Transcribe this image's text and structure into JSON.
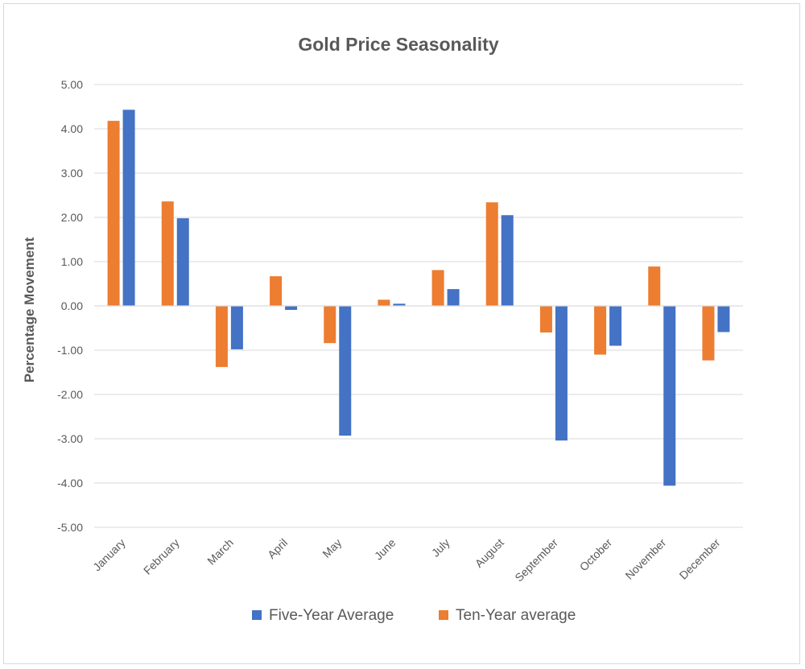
{
  "chart_data": {
    "type": "bar",
    "title": "Gold Price Seasonality",
    "ylabel": "Percentage Movement",
    "xlabel": "",
    "ylim": [
      -5,
      5
    ],
    "yticks": [
      "5.00",
      "4.00",
      "3.00",
      "2.00",
      "1.00",
      "0.00",
      "-1.00",
      "-2.00",
      "-3.00",
      "-4.00",
      "-5.00"
    ],
    "categories": [
      "January",
      "February",
      "March",
      "April",
      "May",
      "June",
      "July",
      "August",
      "September",
      "October",
      "November",
      "December"
    ],
    "series": [
      {
        "name": "Ten-Year average",
        "color": "#ed7d31",
        "values": [
          4.18,
          2.36,
          -1.38,
          0.67,
          -0.84,
          0.14,
          0.81,
          2.34,
          -0.6,
          -1.1,
          0.89,
          -1.23
        ]
      },
      {
        "name": "Five-Year Average",
        "color": "#4472c4",
        "values": [
          4.43,
          1.98,
          -0.98,
          -0.09,
          -2.93,
          0.05,
          0.38,
          2.05,
          -3.04,
          -0.9,
          -4.06,
          -0.59
        ]
      }
    ],
    "legend_order": [
      "Five-Year Average",
      "Ten-Year average"
    ],
    "legend_position": "bottom",
    "grid": true,
    "gridline_color": "#d9d9d9"
  }
}
